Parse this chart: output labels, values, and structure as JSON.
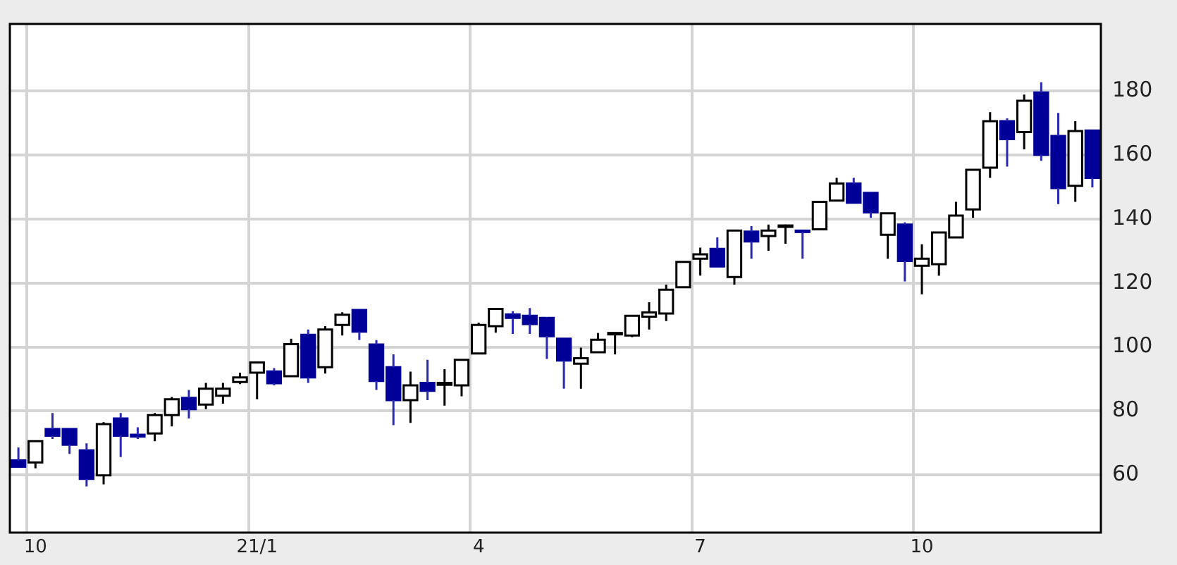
{
  "chart_data": {
    "type": "candlestick",
    "categories": [
      null,
      "10",
      null,
      null,
      null,
      null,
      null,
      null,
      null,
      null,
      null,
      null,
      null,
      null,
      "21/1",
      null,
      null,
      null,
      null,
      null,
      null,
      null,
      null,
      null,
      null,
      null,
      null,
      "4",
      null,
      null,
      null,
      null,
      null,
      null,
      null,
      null,
      null,
      null,
      null,
      null,
      "7",
      null,
      null,
      null,
      null,
      null,
      null,
      null,
      null,
      null,
      null,
      null,
      null,
      "10",
      null,
      null,
      null,
      null,
      null,
      null,
      null,
      null,
      null,
      null
    ],
    "ohlc": [
      [
        64.6,
        68.6,
        62.6,
        62.6
      ],
      [
        63.9,
        70.6,
        62.1,
        70.6
      ],
      [
        74.4,
        79.4,
        71.3,
        72.3
      ],
      [
        74.4,
        74.4,
        66.6,
        69.5
      ],
      [
        67.7,
        69.9,
        56.4,
        58.8
      ],
      [
        59.9,
        76.5,
        57.1,
        75.9
      ],
      [
        77.7,
        79.4,
        65.6,
        72.3
      ],
      [
        72.6,
        74.9,
        71.3,
        72.0
      ],
      [
        73.0,
        79.4,
        70.6,
        78.7
      ],
      [
        78.7,
        84.4,
        75.2,
        83.7
      ],
      [
        84.1,
        86.6,
        77.7,
        80.6
      ],
      [
        82.0,
        88.8,
        80.6,
        87.0
      ],
      [
        84.8,
        88.8,
        82.3,
        87.0
      ],
      [
        89.1,
        92.0,
        88.4,
        90.5
      ],
      [
        92.0,
        95.2,
        83.7,
        95.2
      ],
      [
        92.4,
        93.4,
        88.0,
        88.7
      ],
      [
        90.9,
        102.6,
        90.9,
        100.9
      ],
      [
        103.8,
        105.5,
        88.8,
        90.5
      ],
      [
        93.7,
        106.5,
        91.7,
        105.5
      ],
      [
        106.9,
        110.9,
        103.6,
        110.1
      ],
      [
        111.6,
        111.6,
        102.2,
        104.8
      ],
      [
        100.8,
        102.2,
        86.6,
        89.4
      ],
      [
        93.7,
        97.7,
        75.6,
        83.4
      ],
      [
        83.4,
        92.3,
        76.3,
        88.0
      ],
      [
        88.8,
        96.0,
        83.4,
        86.3
      ],
      [
        88.2,
        93.1,
        81.7,
        88.8
      ],
      [
        88.0,
        96.0,
        84.6,
        96.0
      ],
      [
        98.0,
        107.6,
        97.7,
        106.9
      ],
      [
        106.5,
        112.2,
        104.5,
        111.9
      ],
      [
        110.2,
        111.2,
        104.1,
        109.1
      ],
      [
        109.8,
        112.2,
        104.1,
        107.2
      ],
      [
        109.1,
        109.4,
        96.3,
        103.4
      ],
      [
        102.6,
        102.6,
        87.0,
        95.8
      ],
      [
        94.8,
        99.8,
        87.0,
        96.5
      ],
      [
        98.4,
        104.4,
        98.4,
        102.3
      ],
      [
        104.1,
        104.4,
        97.7,
        104.4
      ],
      [
        103.6,
        109.8,
        103.1,
        109.8
      ],
      [
        109.5,
        114.0,
        105.5,
        110.8
      ],
      [
        110.5,
        119.5,
        108.1,
        117.9
      ],
      [
        118.7,
        126.6,
        118.7,
        126.6
      ],
      [
        127.6,
        131.1,
        122.3,
        129.0
      ],
      [
        130.7,
        134.3,
        125.2,
        125.2
      ],
      [
        121.9,
        136.4,
        119.5,
        136.4
      ],
      [
        136.1,
        137.8,
        127.6,
        133.0
      ],
      [
        134.7,
        138.3,
        130.1,
        136.4
      ],
      [
        137.8,
        138.3,
        132.3,
        138.0
      ],
      [
        136.4,
        136.4,
        127.6,
        136.1
      ],
      [
        136.8,
        145.4,
        136.8,
        145.4
      ],
      [
        145.8,
        152.9,
        145.8,
        151.1
      ],
      [
        151.1,
        152.9,
        145.1,
        145.1
      ],
      [
        148.2,
        148.2,
        140.4,
        142.1
      ],
      [
        135.1,
        141.8,
        127.6,
        141.8
      ],
      [
        138.3,
        139.0,
        120.5,
        126.9
      ],
      [
        125.4,
        132.1,
        116.5,
        127.6
      ],
      [
        125.9,
        135.8,
        122.3,
        135.8
      ],
      [
        134.3,
        145.4,
        134.3,
        141.1
      ],
      [
        143.0,
        155.4,
        140.4,
        155.4
      ],
      [
        156.1,
        173.4,
        152.9,
        170.6
      ],
      [
        170.6,
        171.5,
        156.4,
        165.0
      ],
      [
        167.2,
        178.9,
        161.8,
        177.0
      ],
      [
        179.6,
        182.8,
        158.2,
        160.1
      ],
      [
        166.0,
        173.2,
        144.7,
        149.7
      ],
      [
        150.4,
        170.6,
        145.4,
        167.5
      ],
      [
        167.7,
        167.7,
        149.9,
        152.9
      ]
    ],
    "colors": [
      "#000099",
      "#ffffff",
      "#000099",
      "#000099",
      "#000099",
      "#ffffff",
      "#000099",
      "#000099",
      "#ffffff",
      "#ffffff",
      "#000099",
      "#ffffff",
      "#ffffff",
      "#ffffff",
      "#ffffff",
      "#000099",
      "#ffffff",
      "#000099",
      "#ffffff",
      "#ffffff",
      "#000099",
      "#000099",
      "#000099",
      "#ffffff",
      "#000099",
      "#ffffff",
      "#ffffff",
      "#ffffff",
      "#ffffff",
      "#000099",
      "#000099",
      "#000099",
      "#000099",
      "#ffffff",
      "#ffffff",
      "#ffffff",
      "#ffffff",
      "#ffffff",
      "#ffffff",
      "#ffffff",
      "#ffffff",
      "#000099",
      "#ffffff",
      "#000099",
      "#ffffff",
      "#ffffff",
      "#000099",
      "#ffffff",
      "#ffffff",
      "#000099",
      "#000099",
      "#ffffff",
      "#000099",
      "#ffffff",
      "#ffffff",
      "#ffffff",
      "#ffffff",
      "#ffffff",
      "#000099",
      "#ffffff",
      "#000099",
      "#000099",
      "#ffffff",
      "#000099"
    ],
    "ylim": [
      42,
      201
    ],
    "yticks": [
      60,
      80,
      100,
      120,
      140,
      160,
      180
    ],
    "grid": true
  }
}
